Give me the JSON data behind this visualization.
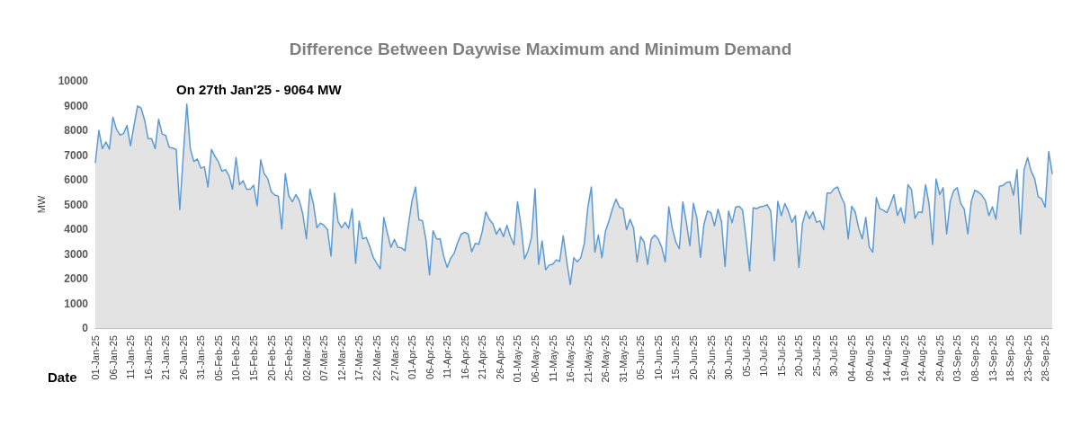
{
  "chart_data": {
    "type": "area",
    "title": "Difference Between Daywise Maximum and Minimum Demand",
    "xlabel": "Date",
    "ylabel": "MW",
    "annotations": [
      "On 27th Jan'25 - 9064 MW"
    ],
    "categories": [
      "01-Jan-25",
      null,
      null,
      null,
      null,
      "06-Jan-25",
      null,
      null,
      null,
      null,
      "11-Jan-25",
      null,
      null,
      null,
      null,
      "16-Jan-25",
      null,
      null,
      null,
      null,
      "21-Jan-25",
      null,
      null,
      null,
      null,
      "26-Jan-25",
      null,
      null,
      null,
      null,
      "31-Jan-25",
      null,
      null,
      null,
      null,
      "05-Feb-25",
      null,
      null,
      null,
      null,
      "10-Feb-25",
      null,
      null,
      null,
      null,
      "15-Feb-25",
      null,
      null,
      null,
      null,
      "20-Feb-25",
      null,
      null,
      null,
      null,
      "25-Feb-25",
      null,
      null,
      null,
      null,
      "02-Mar-25",
      null,
      null,
      null,
      null,
      "07-Mar-25",
      null,
      null,
      null,
      null,
      "12-Mar-25",
      null,
      null,
      null,
      null,
      "17-Mar-25",
      null,
      null,
      null,
      null,
      "22-Mar-25",
      null,
      null,
      null,
      null,
      "27-Mar-25",
      null,
      null,
      null,
      null,
      "01-Apr-25",
      null,
      null,
      null,
      null,
      "06-Apr-25",
      null,
      null,
      null,
      null,
      "11-Apr-25",
      null,
      null,
      null,
      null,
      "16-Apr-25",
      null,
      null,
      null,
      null,
      "21-Apr-25",
      null,
      null,
      null,
      null,
      "26-Apr-25",
      null,
      null,
      null,
      null,
      "01-May-25",
      null,
      null,
      null,
      null,
      "06-May-25",
      null,
      null,
      null,
      null,
      "11-May-25",
      null,
      null,
      null,
      null,
      "16-May-25",
      null,
      null,
      null,
      null,
      "21-May-25",
      null,
      null,
      null,
      null,
      "26-May-25",
      null,
      null,
      null,
      null,
      "31-May-25",
      null,
      null,
      null,
      null,
      "05-Jun-25",
      null,
      null,
      null,
      null,
      "10-Jun-25",
      null,
      null,
      null,
      null,
      "15-Jun-25",
      null,
      null,
      null,
      null,
      "20-Jun-25",
      null,
      null,
      null,
      null,
      "25-Jun-25",
      null,
      null,
      null,
      null,
      "30-Jun-25",
      null,
      null,
      null,
      null,
      "05-Jul-25",
      null,
      null,
      null,
      null,
      "10-Jul-25",
      null,
      null,
      null,
      null,
      "15-Jul-25",
      null,
      null,
      null,
      null,
      "20-Jul-25",
      null,
      null,
      null,
      null,
      "25-Jul-25",
      null,
      null,
      null,
      null,
      "30-Jul-25",
      null,
      null,
      null,
      null,
      "04-Aug-25",
      null,
      null,
      null,
      null,
      "09-Aug-25",
      null,
      null,
      null,
      null,
      "14-Aug-25",
      null,
      null,
      null,
      null,
      "19-Aug-25",
      null,
      null,
      null,
      null,
      "24-Aug-25",
      null,
      null,
      null,
      null,
      "29-Aug-25",
      null,
      null,
      null,
      null,
      "03-Sep-25",
      null,
      null,
      null,
      null,
      "08-Sep-25",
      null,
      null,
      null,
      null,
      "13-Sep-25",
      null,
      null,
      null,
      null,
      "18-Sep-25",
      null,
      null,
      null,
      null,
      "23-Sep-25",
      null,
      null,
      null,
      null,
      "28-Sep-25",
      null,
      null
    ],
    "series": [
      {
        "color": "#5b9bd5",
        "values": [
          6700,
          8000,
          7260,
          7530,
          7240,
          8540,
          8050,
          7810,
          7870,
          8200,
          7380,
          8200,
          8990,
          8900,
          8420,
          7660,
          7660,
          7260,
          8450,
          7850,
          7790,
          7320,
          7280,
          7230,
          4790,
          7000,
          9064,
          7260,
          6740,
          6840,
          6470,
          6530,
          5710,
          7230,
          6950,
          6720,
          6350,
          6410,
          6170,
          5620,
          6900,
          5800,
          5960,
          5620,
          5620,
          5780,
          4950,
          6810,
          6250,
          6050,
          5520,
          5380,
          5340,
          4010,
          6250,
          5350,
          5110,
          5400,
          5160,
          4600,
          3610,
          5620,
          5010,
          4060,
          4250,
          4160,
          3980,
          2910,
          5460,
          4310,
          4060,
          4280,
          4040,
          4830,
          2620,
          4330,
          3610,
          3670,
          3310,
          2860,
          2620,
          2400,
          4480,
          3860,
          3270,
          3590,
          3270,
          3250,
          3130,
          4190,
          5130,
          5710,
          4380,
          4340,
          3550,
          2150,
          3940,
          3610,
          3610,
          2920,
          2460,
          2820,
          3030,
          3460,
          3800,
          3880,
          3800,
          3090,
          3430,
          3390,
          3920,
          4700,
          4400,
          4220,
          3800,
          4040,
          3700,
          4160,
          3700,
          3370,
          5110,
          4160,
          2800,
          3130,
          3670,
          5640,
          2580,
          3530,
          2360,
          2550,
          2580,
          2760,
          2700,
          3740,
          2700,
          1760,
          2850,
          2680,
          2850,
          3430,
          4890,
          5710,
          3070,
          3770,
          2850,
          3920,
          4340,
          4830,
          5220,
          4890,
          4830,
          3980,
          4400,
          4040,
          2680,
          3700,
          3490,
          2580,
          3590,
          3760,
          3610,
          3270,
          2680,
          4910,
          4040,
          3490,
          3210,
          5110,
          4280,
          3330,
          5050,
          4450,
          2860,
          4190,
          4740,
          4670,
          4140,
          4810,
          4310,
          2490,
          4740,
          4260,
          4890,
          4930,
          4770,
          3600,
          2310,
          4870,
          4830,
          4910,
          4930,
          4990,
          4730,
          2730,
          5130,
          4550,
          5040,
          4730,
          4280,
          4550,
          2460,
          4220,
          4740,
          4430,
          4700,
          4280,
          4340,
          3980,
          5460,
          5460,
          5640,
          5710,
          5320,
          5010,
          3610,
          4930,
          4700,
          4040,
          3610,
          4480,
          3280,
          3070,
          5280,
          4830,
          4770,
          4670,
          5010,
          5400,
          4560,
          4870,
          4250,
          5800,
          5600,
          4440,
          4700,
          4670,
          5800,
          5010,
          3380,
          6040,
          5400,
          5680,
          3810,
          5130,
          5560,
          5680,
          5040,
          4810,
          3810,
          5130,
          5580,
          5500,
          5380,
          5160,
          4550,
          4910,
          4400,
          5740,
          5770,
          5890,
          5920,
          5380,
          6410,
          3810,
          6410,
          6900,
          6350,
          6050,
          5320,
          5230,
          4890,
          7140,
          6250
        ]
      }
    ],
    "ylim": [
      0,
      10000
    ],
    "yticks": [
      0,
      1000,
      2000,
      3000,
      4000,
      5000,
      6000,
      7000,
      8000,
      9000,
      10000
    ],
    "grid": false,
    "marker": "none"
  }
}
